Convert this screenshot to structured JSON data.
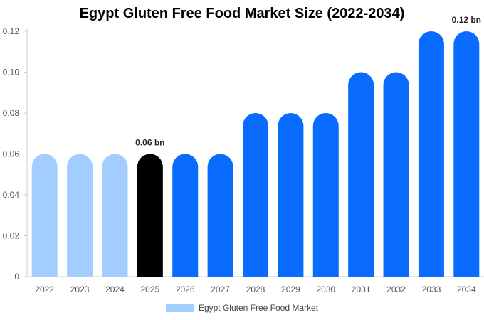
{
  "chart_data": {
    "type": "bar",
    "title": "Egypt Gluten Free Food Market Size (2022-2034)",
    "categories": [
      "2022",
      "2023",
      "2024",
      "2025",
      "2026",
      "2027",
      "2028",
      "2029",
      "2030",
      "2031",
      "2032",
      "2033",
      "2034"
    ],
    "series": [
      {
        "name": "Egypt Gluten Free Food Market",
        "values": [
          0.06,
          0.06,
          0.06,
          0.06,
          0.06,
          0.06,
          0.08,
          0.08,
          0.08,
          0.1,
          0.1,
          0.12,
          0.12
        ]
      }
    ],
    "bar_colors": [
      "#a3ccff",
      "#a3ccff",
      "#a3ccff",
      "#000000",
      "#0a6cff",
      "#0a6cff",
      "#0a6cff",
      "#0a6cff",
      "#0a6cff",
      "#0a6cff",
      "#0a6cff",
      "#0a6cff",
      "#0a6cff"
    ],
    "ylim": [
      0,
      0.12
    ],
    "yticks": [
      "0",
      "0.02",
      "0.04",
      "0.06",
      "0.08",
      "0.10",
      "0.12"
    ],
    "data_labels": [
      {
        "category": "2025",
        "text": "0.06 bn"
      },
      {
        "category": "2034",
        "text": "0.12 bn"
      }
    ],
    "legend": {
      "position": "bottom",
      "color": "#a3ccff"
    },
    "grid": false
  }
}
